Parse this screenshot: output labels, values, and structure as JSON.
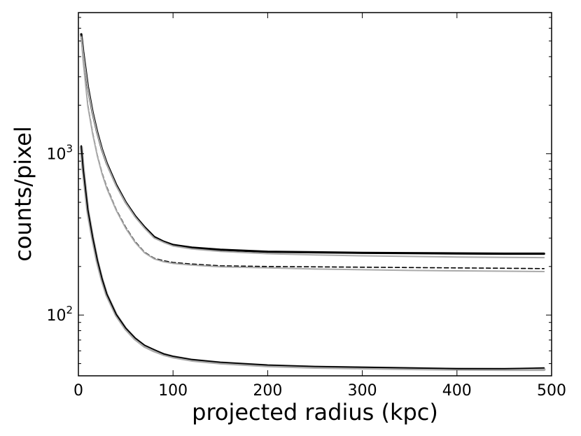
{
  "chart_data": {
    "type": "line",
    "title": "",
    "xlabel": "projected radius (kpc)",
    "ylabel": "counts/pixel",
    "xlim": [
      0,
      500
    ],
    "ylim": [
      42,
      7500
    ],
    "yscale": "log",
    "grid": false,
    "x_ticks": [
      0,
      100,
      200,
      300,
      400,
      500
    ],
    "x_tick_labels": [
      "0",
      "100",
      "200",
      "300",
      "400",
      "500"
    ],
    "y_ticks": [
      100,
      1000
    ],
    "y_tick_labels": [
      {
        "base": "10",
        "exp": "2"
      },
      {
        "base": "10",
        "exp": "3"
      }
    ],
    "series": [
      {
        "style": "solid-bold",
        "color": "#000000",
        "x": [
          3,
          5,
          10,
          15,
          20,
          25,
          30,
          40,
          50,
          60,
          70,
          80,
          90,
          100,
          120,
          150,
          200,
          250,
          300,
          350,
          400,
          450,
          492
        ],
        "y": [
          5500,
          4300,
          2600,
          1800,
          1350,
          1060,
          870,
          640,
          500,
          410,
          350,
          305,
          285,
          272,
          262,
          254,
          247,
          245,
          243,
          242,
          241,
          240,
          240
        ]
      },
      {
        "style": "solid-gray",
        "color": "#aaaaaa",
        "x": [
          3,
          5,
          10,
          15,
          20,
          25,
          30,
          40,
          50,
          60,
          70,
          80,
          90,
          100,
          120,
          150,
          200,
          250,
          300,
          350,
          400,
          450,
          492
        ],
        "y": [
          5400,
          4200,
          2550,
          1780,
          1330,
          1050,
          860,
          630,
          495,
          405,
          345,
          300,
          282,
          268,
          257,
          248,
          240,
          236,
          233,
          231,
          229,
          228,
          227
        ]
      },
      {
        "style": "dashed",
        "color": "#000000",
        "x": [
          3,
          5,
          10,
          15,
          20,
          25,
          30,
          40,
          50,
          60,
          70,
          80,
          90,
          100,
          120,
          150,
          200,
          250,
          300,
          350,
          400,
          450,
          492
        ],
        "y": [
          5400,
          3800,
          2000,
          1350,
          980,
          760,
          620,
          450,
          350,
          285,
          245,
          225,
          217,
          212,
          207,
          202,
          200,
          199,
          198,
          197,
          196,
          195,
          194
        ]
      },
      {
        "style": "solid-gray",
        "color": "#aaaaaa",
        "x": [
          3,
          5,
          10,
          15,
          20,
          25,
          30,
          40,
          50,
          60,
          70,
          80,
          90,
          100,
          120,
          150,
          200,
          250,
          300,
          350,
          400,
          450,
          492
        ],
        "y": [
          5300,
          3750,
          1970,
          1330,
          970,
          750,
          610,
          445,
          345,
          282,
          243,
          223,
          214,
          209,
          204,
          199,
          196,
          193,
          191,
          189,
          188,
          187,
          186
        ]
      },
      {
        "style": "solid-gray-thick",
        "color": "#aaaaaa",
        "x": [
          3,
          5,
          10,
          15,
          20,
          25,
          30,
          40,
          50,
          60,
          70,
          80,
          90,
          100,
          120,
          150,
          200,
          250,
          300,
          350,
          400,
          450,
          492
        ],
        "y": [
          1100,
          800,
          440,
          300,
          215,
          165,
          133,
          100,
          82,
          71,
          64,
          60,
          57,
          55,
          52.5,
          50.5,
          48.5,
          47.5,
          47,
          46.5,
          46.2,
          46,
          46
        ]
      },
      {
        "style": "solid",
        "color": "#000000",
        "x": [
          3,
          5,
          10,
          15,
          20,
          25,
          30,
          40,
          50,
          60,
          70,
          80,
          90,
          100,
          120,
          150,
          200,
          250,
          300,
          350,
          400,
          450,
          492
        ],
        "y": [
          1120,
          810,
          450,
          305,
          220,
          168,
          135,
          101,
          83,
          72,
          65,
          61,
          57.5,
          55.5,
          53,
          51,
          49,
          48,
          47.5,
          47,
          46.5,
          46.5,
          47
        ]
      }
    ]
  }
}
